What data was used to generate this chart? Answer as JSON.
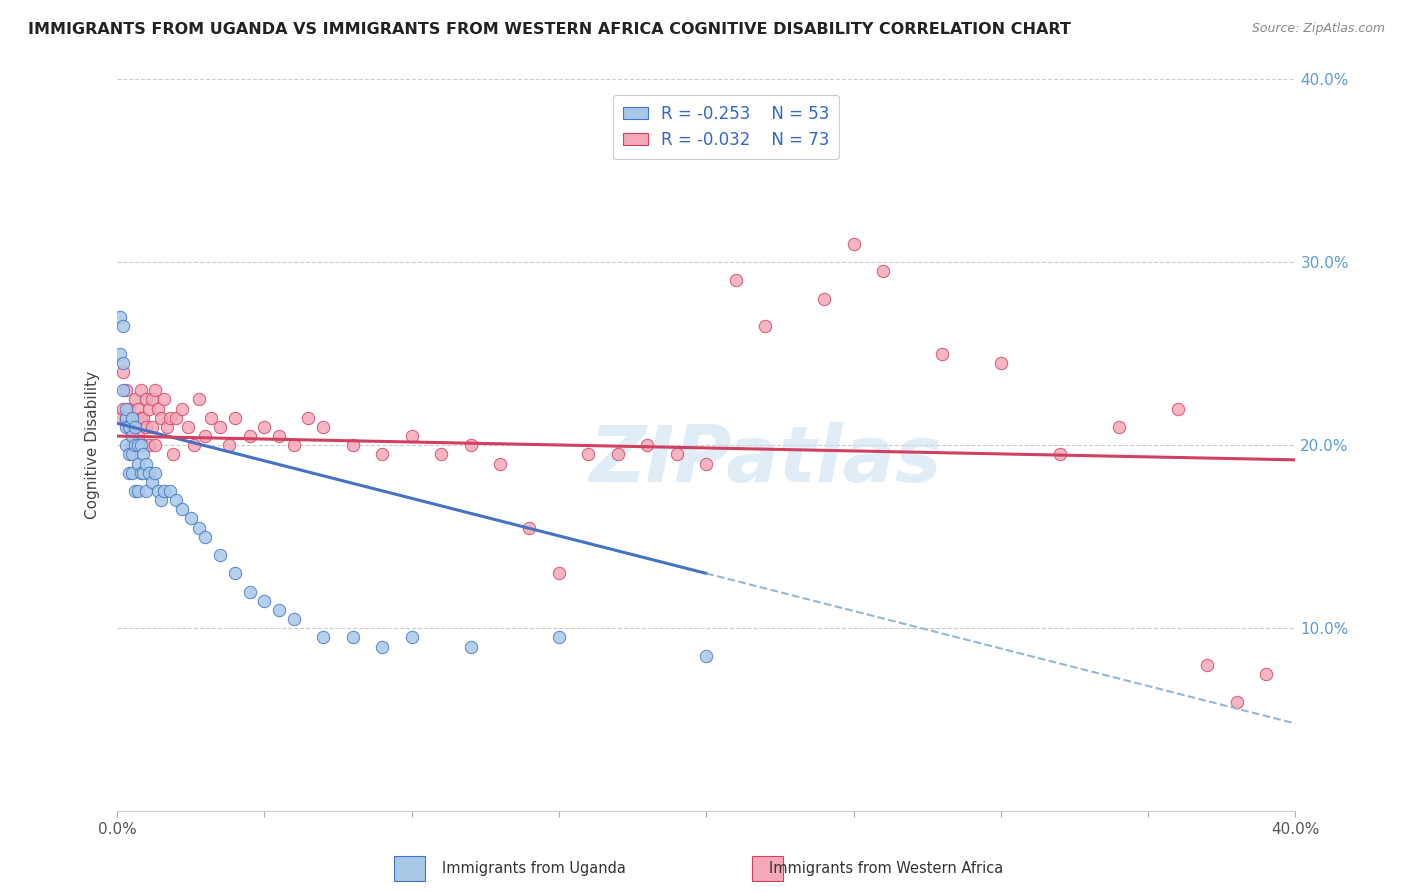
{
  "title": "IMMIGRANTS FROM UGANDA VS IMMIGRANTS FROM WESTERN AFRICA COGNITIVE DISABILITY CORRELATION CHART",
  "source": "Source: ZipAtlas.com",
  "ylabel": "Cognitive Disability",
  "x_min": 0.0,
  "x_max": 0.4,
  "y_min": 0.0,
  "y_max": 0.4,
  "legend_r1": "R = -0.253",
  "legend_n1": "N = 53",
  "legend_r2": "R = -0.032",
  "legend_n2": "N = 73",
  "color_uganda": "#a8c8e8",
  "color_uganda_line": "#4472c4",
  "color_western": "#f4a8b8",
  "color_western_line": "#d04060",
  "color_dashed": "#90b8d8",
  "watermark": "ZIPatlas",
  "uganda_x": [
    0.001,
    0.001,
    0.002,
    0.002,
    0.002,
    0.003,
    0.003,
    0.003,
    0.003,
    0.004,
    0.004,
    0.004,
    0.005,
    0.005,
    0.005,
    0.005,
    0.006,
    0.006,
    0.006,
    0.007,
    0.007,
    0.007,
    0.008,
    0.008,
    0.009,
    0.009,
    0.01,
    0.01,
    0.011,
    0.012,
    0.013,
    0.014,
    0.015,
    0.016,
    0.018,
    0.02,
    0.022,
    0.025,
    0.028,
    0.03,
    0.035,
    0.04,
    0.045,
    0.05,
    0.055,
    0.06,
    0.07,
    0.08,
    0.09,
    0.1,
    0.12,
    0.15,
    0.2
  ],
  "uganda_y": [
    0.27,
    0.25,
    0.265,
    0.245,
    0.23,
    0.215,
    0.22,
    0.21,
    0.2,
    0.21,
    0.195,
    0.185,
    0.215,
    0.205,
    0.195,
    0.185,
    0.21,
    0.2,
    0.175,
    0.2,
    0.19,
    0.175,
    0.2,
    0.185,
    0.195,
    0.185,
    0.19,
    0.175,
    0.185,
    0.18,
    0.185,
    0.175,
    0.17,
    0.175,
    0.175,
    0.17,
    0.165,
    0.16,
    0.155,
    0.15,
    0.14,
    0.13,
    0.12,
    0.115,
    0.11,
    0.105,
    0.095,
    0.095,
    0.09,
    0.095,
    0.09,
    0.095,
    0.085
  ],
  "western_x": [
    0.001,
    0.002,
    0.002,
    0.003,
    0.003,
    0.004,
    0.004,
    0.005,
    0.005,
    0.006,
    0.006,
    0.007,
    0.007,
    0.008,
    0.008,
    0.009,
    0.009,
    0.01,
    0.01,
    0.011,
    0.011,
    0.012,
    0.012,
    0.013,
    0.013,
    0.014,
    0.015,
    0.016,
    0.017,
    0.018,
    0.019,
    0.02,
    0.022,
    0.024,
    0.026,
    0.028,
    0.03,
    0.032,
    0.035,
    0.038,
    0.04,
    0.045,
    0.05,
    0.055,
    0.06,
    0.065,
    0.07,
    0.08,
    0.09,
    0.1,
    0.11,
    0.12,
    0.13,
    0.14,
    0.15,
    0.16,
    0.17,
    0.18,
    0.19,
    0.2,
    0.21,
    0.22,
    0.24,
    0.25,
    0.26,
    0.28,
    0.3,
    0.32,
    0.34,
    0.36,
    0.37,
    0.38,
    0.39
  ],
  "western_y": [
    0.215,
    0.24,
    0.22,
    0.215,
    0.23,
    0.22,
    0.21,
    0.215,
    0.2,
    0.225,
    0.21,
    0.22,
    0.205,
    0.23,
    0.215,
    0.215,
    0.2,
    0.225,
    0.21,
    0.22,
    0.2,
    0.225,
    0.21,
    0.23,
    0.2,
    0.22,
    0.215,
    0.225,
    0.21,
    0.215,
    0.195,
    0.215,
    0.22,
    0.21,
    0.2,
    0.225,
    0.205,
    0.215,
    0.21,
    0.2,
    0.215,
    0.205,
    0.21,
    0.205,
    0.2,
    0.215,
    0.21,
    0.2,
    0.195,
    0.205,
    0.195,
    0.2,
    0.19,
    0.155,
    0.13,
    0.195,
    0.195,
    0.2,
    0.195,
    0.19,
    0.29,
    0.265,
    0.28,
    0.31,
    0.295,
    0.25,
    0.245,
    0.195,
    0.21,
    0.22,
    0.08,
    0.06,
    0.075
  ],
  "uganda_line_x0": 0.0,
  "uganda_line_y0": 0.212,
  "uganda_line_x1": 0.2,
  "uganda_line_y1": 0.13,
  "western_line_x0": 0.0,
  "western_line_y0": 0.205,
  "western_line_x1": 0.4,
  "western_line_y1": 0.192
}
